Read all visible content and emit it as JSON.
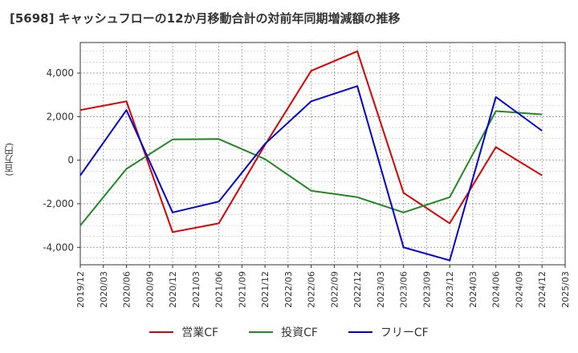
{
  "title": "[5698]  キャッシュフローの12か月移動合計の対前年同期増減額の推移",
  "y_unit": "(百万円)",
  "colors": {
    "operating": "#dd0000",
    "investing": "#228822",
    "free": "#0000dd"
  },
  "chart_data": {
    "type": "line",
    "title": "[5698]  キャッシュフローの12か月移動合計の対前年同期増減額の推移",
    "ylabel": "(百万円)",
    "ylim": [
      -4800,
      5400
    ],
    "yticks": [
      -4000,
      -2000,
      0,
      2000,
      4000
    ],
    "ytick_labels": [
      "-4,000",
      "-2,000",
      "0",
      "2,000",
      "4,000"
    ],
    "x_ticks": [
      "2019/12",
      "2020/03",
      "2020/06",
      "2020/09",
      "2020/12",
      "2021/03",
      "2021/06",
      "2021/09",
      "2021/12",
      "2022/03",
      "2022/06",
      "2022/09",
      "2022/12",
      "2023/03",
      "2023/06",
      "2023/09",
      "2023/12",
      "2024/03",
      "2024/06",
      "2024/09",
      "2024/12",
      "2025/03"
    ],
    "grid": true,
    "legend_position": "bottom",
    "series": [
      {
        "name": "営業CF",
        "color": "#dd0000",
        "x": [
          "2019/12",
          "2020/06",
          "2020/12",
          "2021/06",
          "2021/12",
          "2022/06",
          "2022/12",
          "2023/06",
          "2023/12",
          "2024/06",
          "2024/12"
        ],
        "values": [
          2300,
          2700,
          -3300,
          -2900,
          700,
          4100,
          5000,
          -1500,
          -2900,
          600,
          -700
        ]
      },
      {
        "name": "投資CF",
        "color": "#228822",
        "x": [
          "2019/12",
          "2020/06",
          "2020/12",
          "2021/06",
          "2021/12",
          "2022/06",
          "2022/12",
          "2023/06",
          "2023/12",
          "2024/06",
          "2024/12"
        ],
        "values": [
          -3000,
          -400,
          950,
          970,
          50,
          -1400,
          -1700,
          -2400,
          -1700,
          2250,
          2100
        ]
      },
      {
        "name": "フリーCF",
        "color": "#0000dd",
        "x": [
          "2019/12",
          "2020/06",
          "2020/12",
          "2021/06",
          "2021/12",
          "2022/06",
          "2022/12",
          "2023/06",
          "2023/12",
          "2024/06",
          "2024/12"
        ],
        "values": [
          -700,
          2300,
          -2400,
          -1900,
          750,
          2700,
          3400,
          -4000,
          -4600,
          2900,
          1350
        ]
      }
    ]
  }
}
